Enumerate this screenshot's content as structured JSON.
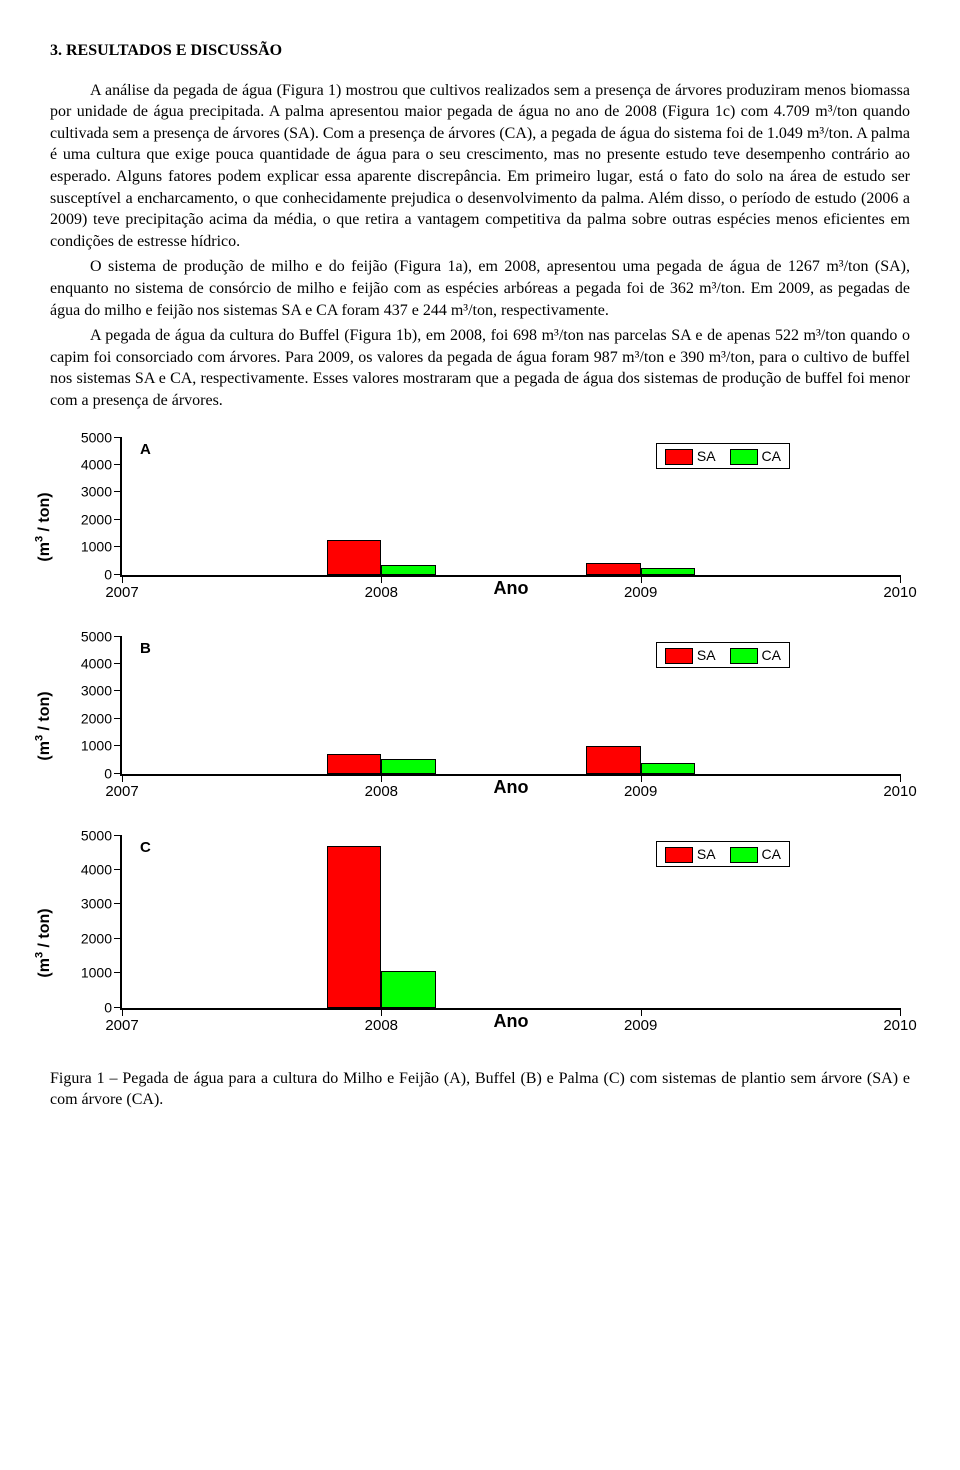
{
  "section_title": "3. RESULTADOS E DISCUSSÃO",
  "paragraphs": {
    "p1": "A análise da pegada de água (Figura 1) mostrou que cultivos realizados sem a presença de árvores produziram menos biomassa por unidade de água precipitada. A palma apresentou maior pegada de água no ano de 2008 (Figura 1c) com 4.709 m³/ton quando cultivada sem a presença de árvores (SA). Com a presença de árvores (CA), a pegada de água do sistema foi de 1.049 m³/ton. A palma é uma cultura que exige pouca quantidade de água para o seu crescimento, mas no presente estudo teve desempenho contrário ao esperado. Alguns fatores podem explicar essa aparente discrepância. Em primeiro lugar, está o fato do solo na área de estudo ser susceptível a encharcamento, o que conhecidamente prejudica o desenvolvimento da palma. Além disso, o período de estudo (2006 a 2009) teve precipitação acima da média, o que retira a vantagem competitiva da palma sobre outras espécies menos eficientes em condições de estresse hídrico.",
    "p2": "O sistema de produção de milho e do feijão (Figura 1a), em 2008, apresentou uma pegada de água de 1267 m³/ton (SA), enquanto no sistema de consórcio de milho e feijão com as espécies arbóreas a pegada foi de 362 m³/ton. Em 2009, as pegadas de água do milho e feijão nos sistemas SA e CA foram 437 e 244 m³/ton, respectivamente.",
    "p3": "A pegada de água da cultura do Buffel (Figura 1b), em 2008, foi 698 m³/ton nas parcelas SA e de apenas 522 m³/ton quando o capim foi consorciado com árvores. Para 2009, os valores da pegada de água foram 987 m³/ton e 390 m³/ton, para o cultivo de buffel nos sistemas SA e CA, respectivamente. Esses valores mostraram que a pegada de água dos sistemas de produção de buffel foi menor com a presença de árvores."
  },
  "figure_caption": "Figura 1 – Pegada de água para a cultura do Milho e Feijão (A), Buffel (B) e Palma (C) com sistemas de plantio sem árvore (SA) e com árvore (CA).",
  "chart": {
    "ylabel_html": "(m<sup>3</sup> / ton)",
    "xlabel": "Ano",
    "ymax": 5000,
    "yticks": [
      0,
      1000,
      2000,
      3000,
      4000,
      5000
    ],
    "xticks": [
      2007,
      2008,
      2009,
      2010
    ],
    "xmin": 2007,
    "xmax": 2010,
    "bar_group_width": 0.42,
    "colors": {
      "SA": "#ff0000",
      "CA": "#00ff00"
    },
    "legend": [
      {
        "key": "SA",
        "label": "SA",
        "color": "#ff0000"
      },
      {
        "key": "CA",
        "label": "CA",
        "color": "#00ff00"
      }
    ],
    "panels": [
      {
        "id": "A",
        "letter": "A",
        "tall": false,
        "groups": [
          {
            "x": 2008,
            "SA": 1267,
            "CA": 362
          },
          {
            "x": 2009,
            "SA": 437,
            "CA": 244
          }
        ]
      },
      {
        "id": "B",
        "letter": "B",
        "tall": false,
        "groups": [
          {
            "x": 2008,
            "SA": 698,
            "CA": 522
          },
          {
            "x": 2009,
            "SA": 987,
            "CA": 390
          }
        ]
      },
      {
        "id": "C",
        "letter": "C",
        "tall": true,
        "groups": [
          {
            "x": 2008,
            "SA": 4709,
            "CA": 1049
          }
        ]
      }
    ]
  }
}
